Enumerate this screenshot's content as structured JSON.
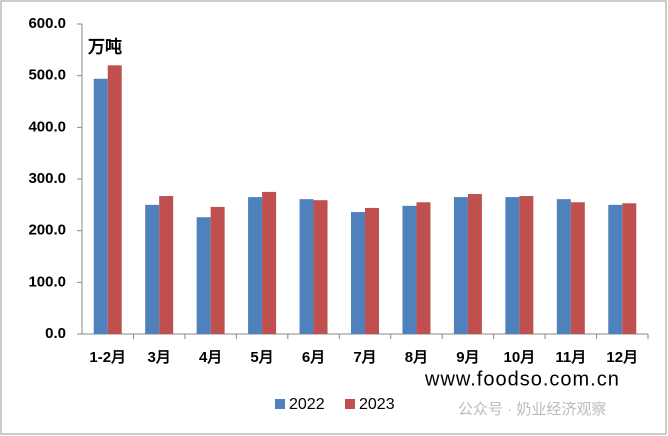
{
  "chart_data": {
    "type": "bar",
    "unit_label": "万吨",
    "categories": [
      "1-2月",
      "3月",
      "4月",
      "5月",
      "6月",
      "7月",
      "8月",
      "9月",
      "10月",
      "11月",
      "12月"
    ],
    "series": [
      {
        "name": "2022",
        "color": "#4f81bd",
        "values": [
          494,
          250,
          226,
          265,
          261,
          236,
          248,
          265,
          265,
          261,
          250
        ]
      },
      {
        "name": "2023",
        "color": "#c0504d",
        "values": [
          520,
          267,
          246,
          275,
          259,
          244,
          255,
          271,
          267,
          255,
          253
        ]
      }
    ],
    "ylim": [
      0,
      600
    ],
    "yticks": [
      {
        "value": 0,
        "label": "0.0"
      },
      {
        "value": 100,
        "label": "100.0"
      },
      {
        "value": 200,
        "label": "200.0"
      },
      {
        "value": 300,
        "label": "300.0"
      },
      {
        "value": 400,
        "label": "400.0"
      },
      {
        "value": 500,
        "label": "500.0"
      },
      {
        "value": 600,
        "label": "600.0"
      }
    ],
    "grid": false,
    "legend": "bottom",
    "watermarks": [
      "www.foodso.com.cn",
      "公众号 · 奶业经济观察"
    ]
  }
}
